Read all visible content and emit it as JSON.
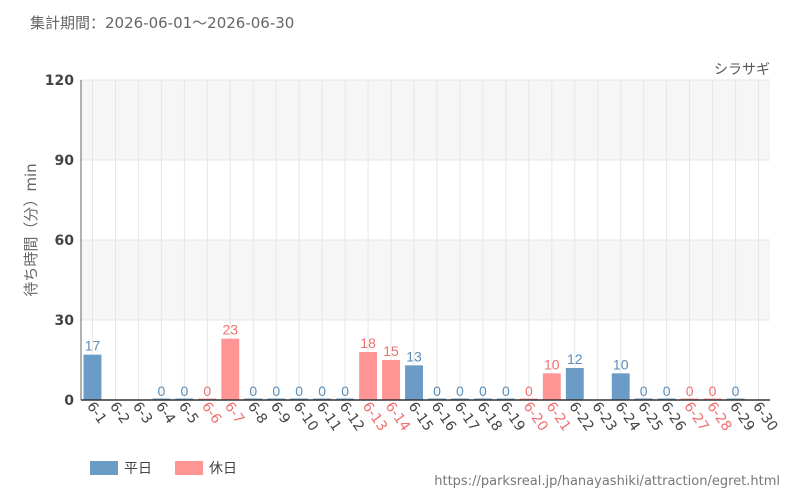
{
  "period": "集計期間：2026-06-01～2026-06-30",
  "source_url": "https://parksreal.jp/hanayashiki/attraction/egret.html",
  "colors": {
    "weekday": "#6a9cc6",
    "holiday": "#ff9494",
    "weekday_label": "#5b8db8",
    "holiday_label": "#f07070",
    "grid": "#e6e6e6",
    "band": "#f6f6f6"
  },
  "chart_data": {
    "type": "bar",
    "subtitle": "シラサギ",
    "xlabel": "",
    "ylabel": "待ち時間（分）min",
    "ylim": [
      0,
      120
    ],
    "yticks": [
      0,
      30,
      60,
      90,
      120
    ],
    "grid": true,
    "legend": "bottom-left",
    "categories": [
      "6-1",
      "6-2",
      "6-3",
      "6-4",
      "6-5",
      "6-6",
      "6-7",
      "6-8",
      "6-9",
      "6-10",
      "6-11",
      "6-12",
      "6-13",
      "6-14",
      "6-15",
      "6-16",
      "6-17",
      "6-18",
      "6-19",
      "6-20",
      "6-21",
      "6-22",
      "6-23",
      "6-24",
      "6-25",
      "6-26",
      "6-27",
      "6-28",
      "6-29",
      "6-30"
    ],
    "values": [
      17,
      null,
      null,
      0,
      0,
      0,
      23,
      0,
      0,
      0,
      0,
      0,
      18,
      15,
      13,
      0,
      0,
      0,
      0,
      0,
      10,
      12,
      null,
      10,
      0,
      0,
      0,
      0,
      0,
      null
    ],
    "day_type": [
      "weekday",
      "weekday",
      "weekday",
      "weekday",
      "weekday",
      "holiday",
      "holiday",
      "weekday",
      "weekday",
      "weekday",
      "weekday",
      "weekday",
      "holiday",
      "holiday",
      "weekday",
      "weekday",
      "weekday",
      "weekday",
      "weekday",
      "holiday",
      "holiday",
      "weekday",
      "weekday",
      "weekday",
      "weekday",
      "weekday",
      "holiday",
      "holiday",
      "weekday",
      "weekday"
    ],
    "series": [
      {
        "name": "平日",
        "key": "weekday"
      },
      {
        "name": "休日",
        "key": "holiday"
      }
    ]
  }
}
